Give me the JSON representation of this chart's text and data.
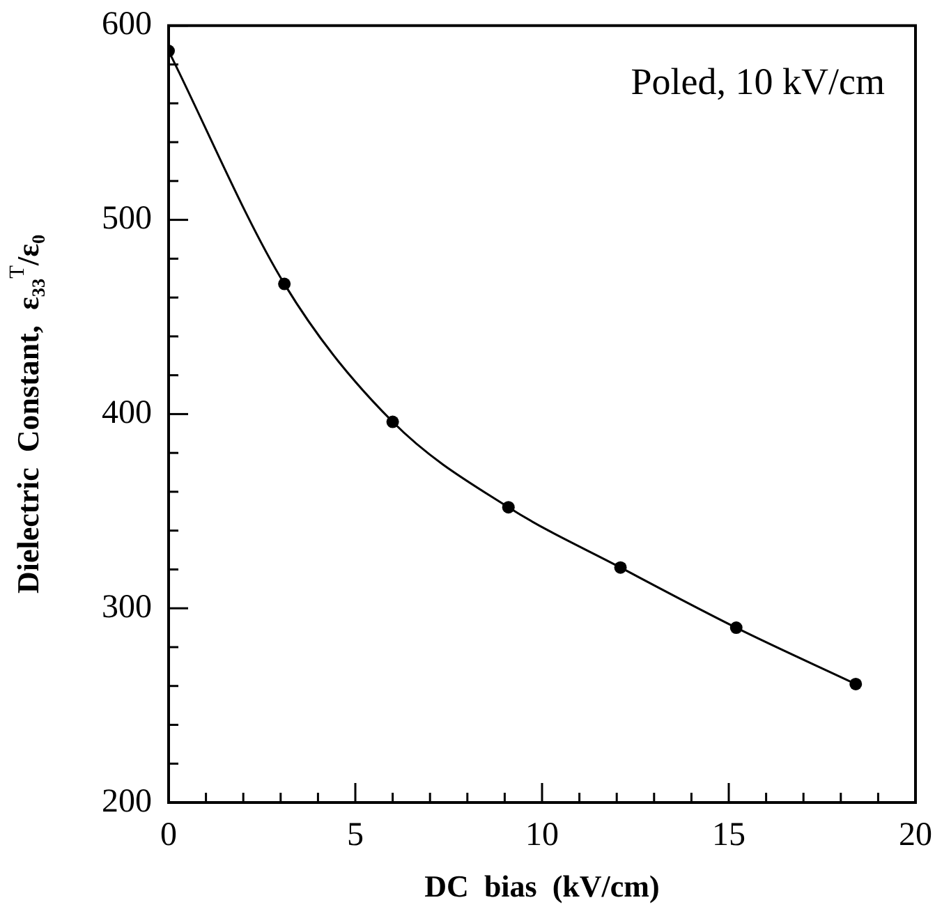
{
  "chart_data": {
    "type": "line",
    "xlabel": "DC  bias  (kV/cm)",
    "ylabel": "Dielectric  Constant,  ε₃₃$^{T}$/ε₀",
    "annotations": [
      "Poled, 10 kV/cm"
    ],
    "series": [
      {
        "color": "#000000",
        "x": [
          0,
          3.1,
          6.0,
          9.1,
          12.1,
          15.2,
          18.4
        ],
        "values": [
          587,
          467,
          396,
          352,
          321,
          290,
          261
        ]
      }
    ],
    "xlim": [
      0,
      20
    ],
    "xticks": [
      0,
      {
        "value": 1,
        "label": null
      },
      {
        "value": 2,
        "label": null
      },
      {
        "value": 3,
        "label": null
      },
      {
        "value": 4,
        "label": null
      },
      5,
      {
        "value": 6,
        "label": null
      },
      {
        "value": 7,
        "label": null
      },
      {
        "value": 8,
        "label": null
      },
      {
        "value": 9,
        "label": null
      },
      10,
      {
        "value": 11,
        "label": null
      },
      {
        "value": 12,
        "label": null
      },
      {
        "value": 13,
        "label": null
      },
      {
        "value": 14,
        "label": null
      },
      15,
      {
        "value": 16,
        "label": null
      },
      {
        "value": 17,
        "label": null
      },
      {
        "value": 18,
        "label": null
      },
      {
        "value": 19,
        "label": null
      },
      20
    ],
    "ylim": [
      200,
      600
    ],
    "yticks": [
      200,
      {
        "value": 220,
        "label": null
      },
      {
        "value": 240,
        "label": null
      },
      {
        "value": 260,
        "label": null
      },
      {
        "value": 280,
        "label": null
      },
      300,
      {
        "value": 320,
        "label": null
      },
      {
        "value": 340,
        "label": null
      },
      {
        "value": 360,
        "label": null
      },
      {
        "value": 380,
        "label": null
      },
      400,
      {
        "value": 420,
        "label": null
      },
      {
        "value": 440,
        "label": null
      },
      {
        "value": 460,
        "label": null
      },
      {
        "value": 480,
        "label": null
      },
      500,
      {
        "value": 520,
        "label": null
      },
      {
        "value": 540,
        "label": null
      },
      {
        "value": 560,
        "label": null
      },
      {
        "value": 580,
        "label": null
      },
      600
    ],
    "grid": false,
    "legend": false,
    "marker": "circle",
    "line_style": "solid"
  }
}
